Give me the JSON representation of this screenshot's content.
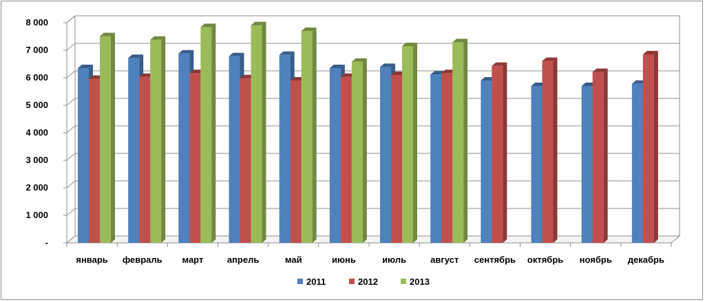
{
  "chart_data": {
    "type": "bar",
    "title": "",
    "xlabel": "",
    "ylabel": "",
    "ylim": [
      0,
      8000
    ],
    "y_ticks": [
      {
        "value": 0,
        "label": "-"
      },
      {
        "value": 1000,
        "label": "1 000"
      },
      {
        "value": 2000,
        "label": "2 000"
      },
      {
        "value": 3000,
        "label": "3 000"
      },
      {
        "value": 4000,
        "label": "4 000"
      },
      {
        "value": 5000,
        "label": "5 000"
      },
      {
        "value": 6000,
        "label": "6 000"
      },
      {
        "value": 7000,
        "label": "7 000"
      },
      {
        "value": 8000,
        "label": "8 000"
      }
    ],
    "categories": [
      "январь",
      "февраль",
      "март",
      "апрель",
      "май",
      "июнь",
      "июль",
      "август",
      "сентябрь",
      "октябрь",
      "ноябрь",
      "декабрь"
    ],
    "series": [
      {
        "name": "2011",
        "color": "#4f81bd",
        "side": "#385d8a",
        "values": [
          6350,
          6720,
          6880,
          6780,
          6830,
          6350,
          6390,
          6120,
          5900,
          5700,
          5700,
          5780
        ]
      },
      {
        "name": "2012",
        "color": "#c0504d",
        "side": "#8c3836",
        "values": [
          5960,
          6030,
          6170,
          5980,
          5900,
          6030,
          6100,
          6170,
          6430,
          6610,
          6210,
          6850
        ]
      },
      {
        "name": "2013",
        "color": "#9bbb59",
        "side": "#71893f",
        "values": [
          7510,
          7380,
          7840,
          7910,
          7700,
          6580,
          7150,
          7290,
          null,
          null,
          null,
          null
        ]
      }
    ],
    "grid": true,
    "legend_position": "bottom"
  }
}
